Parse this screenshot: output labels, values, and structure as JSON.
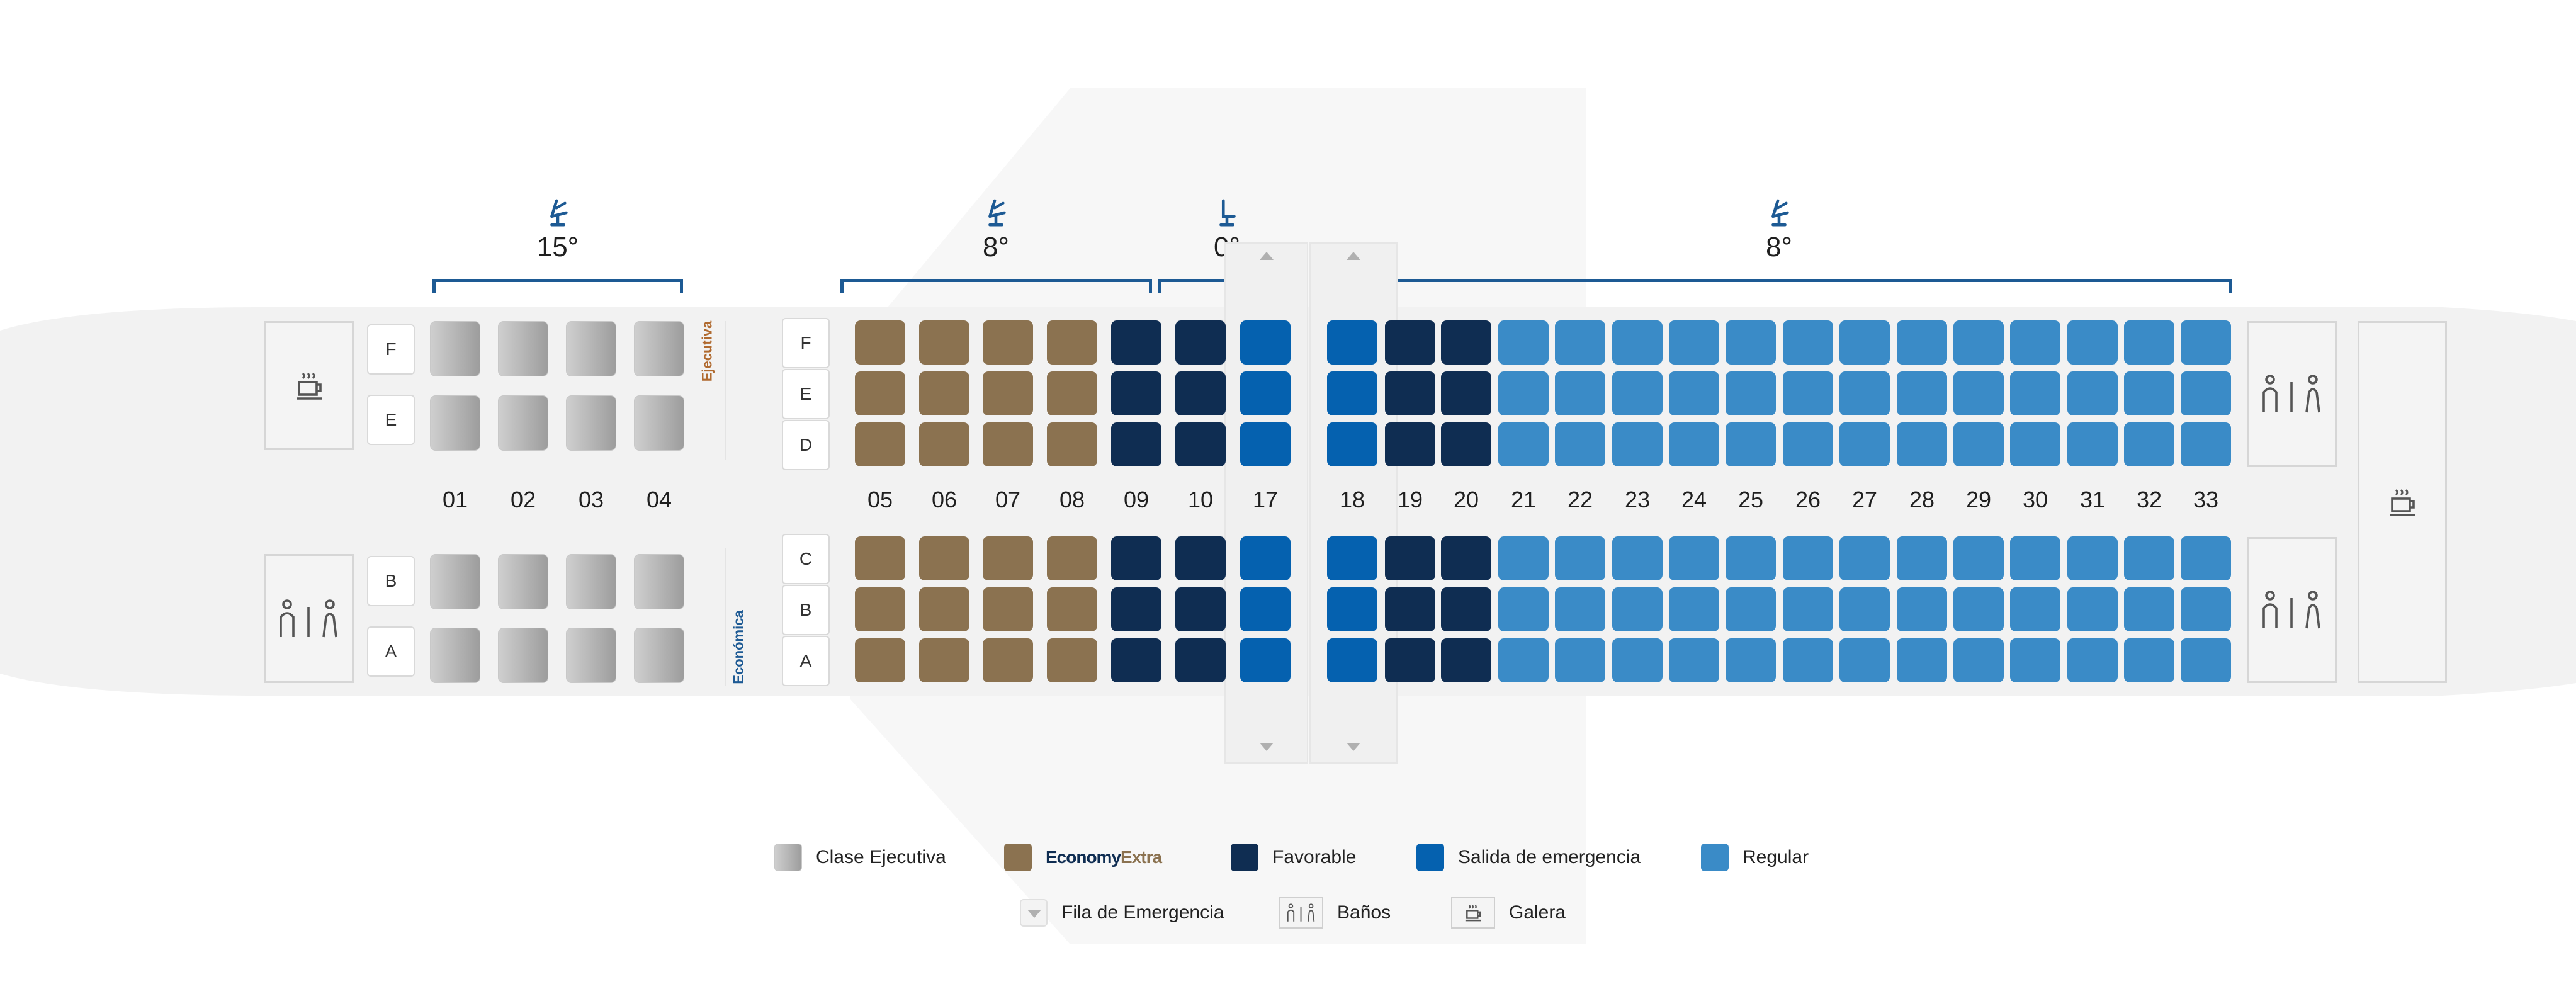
{
  "reclines": [
    {
      "deg": "15°"
    },
    {
      "deg": "8°"
    },
    {
      "deg": "0°"
    },
    {
      "deg": "8°"
    }
  ],
  "class_labels": {
    "executive": "Ejecutiva",
    "economy": "Económica"
  },
  "exec_letters": [
    "F",
    "E",
    "B",
    "A"
  ],
  "econ_letters": [
    "F",
    "E",
    "D",
    "C",
    "B",
    "A"
  ],
  "exec_rows": [
    "01",
    "02",
    "03",
    "04"
  ],
  "econ_rows": [
    "05",
    "06",
    "07",
    "08",
    "09",
    "10",
    "17",
    "18",
    "19",
    "20",
    "21",
    "22",
    "23",
    "24",
    "25",
    "26",
    "27",
    "28",
    "29",
    "30",
    "31",
    "32",
    "33"
  ],
  "econ_row_types": [
    "extra",
    "extra",
    "extra",
    "extra",
    "fav",
    "fav",
    "emerg",
    "emerg",
    "fav",
    "fav",
    "reg",
    "reg",
    "reg",
    "reg",
    "reg",
    "reg",
    "reg",
    "reg",
    "reg",
    "reg",
    "reg",
    "reg",
    "reg"
  ],
  "legend": {
    "executive": "Clase Ejecutiva",
    "extra_brand_a": "Economy",
    "extra_brand_b": "Extra",
    "favorable": "Favorable",
    "emergency": "Salida de emergencia",
    "regular": "Regular",
    "emergency_row": "Fila de Emergencia",
    "bathrooms": "Baños",
    "galley": "Galera"
  },
  "colors": {
    "extra": "#8b7250",
    "favorable": "#0f2d52",
    "emergency": "#0561af",
    "regular": "#3a8bc7",
    "bracket": "#1d5a94",
    "exec_label": "#b06a2f",
    "econ_label": "#1d5a94"
  },
  "icons": [
    "recline-seat-icon",
    "coffee-cup-icon",
    "restroom-icon",
    "exit-row-arrow-icon"
  ]
}
